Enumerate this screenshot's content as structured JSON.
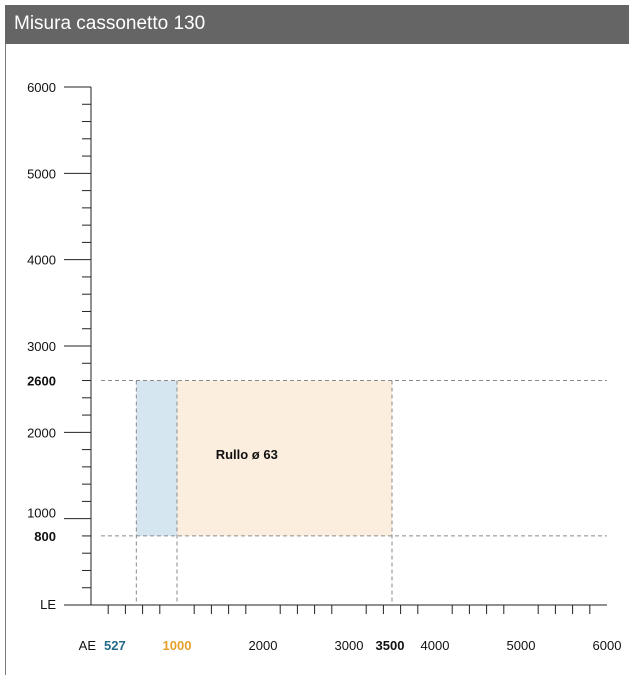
{
  "header": {
    "title": "Misura cassonetto 130"
  },
  "colors": {
    "header_bg": "#656565",
    "blue_fill": "#d6e6f1",
    "orange_fill": "#fbeedf",
    "blue_text": "#256b8a",
    "orange_text": "#e5a02a"
  },
  "chart_data": {
    "type": "area",
    "title": "Misura cassonetto 130",
    "y_axis": {
      "label": "LE",
      "range": [
        0,
        6000
      ],
      "ticks": [
        "1000",
        "2000",
        "3000",
        "4000",
        "5000",
        "6000"
      ],
      "minor_step": 200
    },
    "x_axis": {
      "label": "AE",
      "range": [
        0,
        6000
      ],
      "ticks": [
        "2000",
        "3000",
        "4000",
        "5000",
        "6000"
      ],
      "minor_step": 200
    },
    "highlights": {
      "y_low": {
        "value": 800,
        "text": "800"
      },
      "y_high": {
        "value": 2600,
        "text": "2600"
      },
      "x_min": {
        "value": 527,
        "text": "527"
      },
      "x_split": {
        "value": 1000,
        "text": "1000"
      },
      "x_max": {
        "value": 3500,
        "text": "3500"
      }
    },
    "regions": [
      {
        "x": [
          527,
          1000
        ],
        "y": [
          800,
          2600
        ],
        "color": "#d6e6f1",
        "label": ""
      },
      {
        "x": [
          1000,
          3500
        ],
        "y": [
          800,
          2600
        ],
        "color": "#fbeedf",
        "label": "Rullo ø 63"
      }
    ],
    "grid": false,
    "guides": "dashed"
  }
}
